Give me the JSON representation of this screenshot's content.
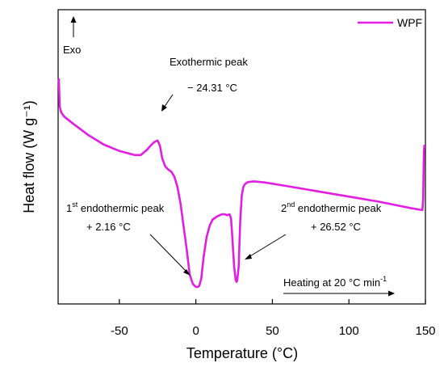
{
  "chart_data": {
    "type": "line",
    "xlabel": "Temperature (°C)",
    "ylabel": "Heat flow (W g⁻¹)",
    "xlim": [
      -90,
      150
    ],
    "xticks": [
      -50,
      0,
      50,
      100,
      150
    ],
    "xtick_labels": [
      "-50",
      "0",
      "50",
      "100",
      "150"
    ],
    "y_units": "relative (no tick labels)",
    "ylim": [
      0,
      100
    ],
    "grid": false,
    "legend_position": "top-right",
    "colors": {
      "series": "#e11ee1",
      "axis": "#000000"
    },
    "series": [
      {
        "name": "WPF",
        "x": [
          -89.5,
          -89,
          -88,
          -86,
          -80,
          -70,
          -60,
          -50,
          -45,
          -40,
          -36,
          -32,
          -29,
          -27,
          -25,
          -23.5,
          -22,
          -20,
          -18,
          -16,
          -14,
          -12,
          -10,
          -8,
          -6,
          -4,
          -2,
          0,
          1,
          2.2,
          3.5,
          5,
          7,
          9,
          11,
          14,
          17,
          19,
          20.5,
          22,
          23,
          24,
          25,
          26,
          26.5,
          27,
          28,
          29,
          30,
          31,
          32,
          34,
          38,
          45,
          60,
          80,
          100,
          120,
          140,
          148,
          148.5,
          149,
          149.3
        ],
        "y": [
          100,
          87,
          84,
          82,
          78.5,
          73,
          68.5,
          65.5,
          64.5,
          63.5,
          63.5,
          66,
          68.5,
          69.8,
          70.5,
          68,
          62,
          58,
          56.5,
          55.5,
          53,
          48,
          40,
          29,
          18,
          6,
          1.5,
          0,
          0,
          0.5,
          4,
          14,
          24,
          29.5,
          32.5,
          34,
          35,
          35,
          34.5,
          35,
          33,
          22,
          10,
          3.5,
          2.5,
          3,
          10,
          32,
          44,
          48,
          49.5,
          50.5,
          50.8,
          50.3,
          48.5,
          46,
          43.5,
          41,
          38,
          37,
          42,
          65,
          68
        ]
      }
    ],
    "annotations": [
      {
        "id": "exo",
        "arrow_label": "Exo"
      },
      {
        "id": "exothermic",
        "line1": "Exothermic peak",
        "line2": "− 24.31 °C",
        "x": -24.31
      },
      {
        "id": "endo1",
        "ordinal": "1",
        "sup": "st",
        "line1": " endothermic peak",
        "line2": "+ 2.16 °C",
        "x": 2.16
      },
      {
        "id": "endo2",
        "ordinal": "2",
        "sup": "nd",
        "line1": " endothermic peak",
        "line2": "+ 26.52 °C",
        "x": 26.52
      },
      {
        "id": "heating",
        "prefix": "Heating at 20 °C min",
        "sup": "-1"
      }
    ]
  }
}
